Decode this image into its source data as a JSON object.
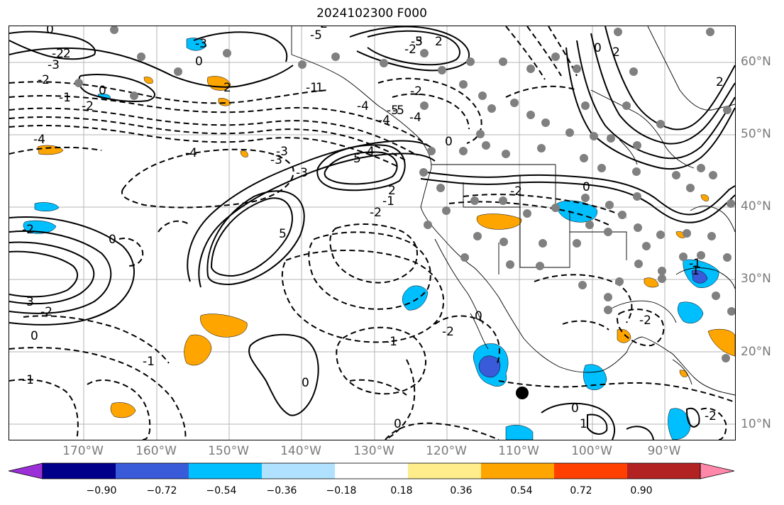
{
  "title": "2024102300 F000",
  "lat_labels": [
    "60°N",
    "50°N",
    "40°N",
    "30°N",
    "20°N",
    "10°N"
  ],
  "lon_labels": [
    "170°W",
    "160°W",
    "150°W",
    "140°W",
    "130°W",
    "120°W",
    "110°W",
    "100°W",
    "90°W"
  ],
  "colorbar": {
    "ticks": [
      "−0.90",
      "−0.72",
      "−0.54",
      "−0.36",
      "−0.18",
      "0.18",
      "0.36",
      "0.54",
      "0.72",
      "0.90"
    ],
    "colors": [
      "#9b30d9",
      "#00008b",
      "#3a5bd9",
      "#00bfff",
      "#b0e2ff",
      "#ffffff",
      "#ffec8b",
      "#ffa500",
      "#ff4000",
      "#b22222",
      "#ff88aa"
    ]
  },
  "contour_labels": [
    "0",
    "-2",
    "2",
    "-3",
    "-1",
    "-2",
    "0",
    "-3",
    "2",
    "-5",
    "1",
    "-2",
    "0",
    "-4",
    "4",
    "-3",
    "2",
    "-2",
    "-5",
    "5",
    "-4",
    "-4",
    "-2",
    "2",
    "0",
    "-2",
    "0",
    "3",
    "-2",
    "-1",
    "-2",
    "0",
    "-1",
    "-2",
    "-1",
    "0",
    "0",
    "-2",
    "0",
    "-2",
    "1",
    "-1",
    "0",
    "0",
    "1",
    "-1",
    "0",
    "2",
    "2",
    "3",
    "-4",
    "-2",
    "-3",
    "-4",
    "-5",
    "-3",
    "-1",
    "-5",
    "5",
    "-2"
  ]
}
